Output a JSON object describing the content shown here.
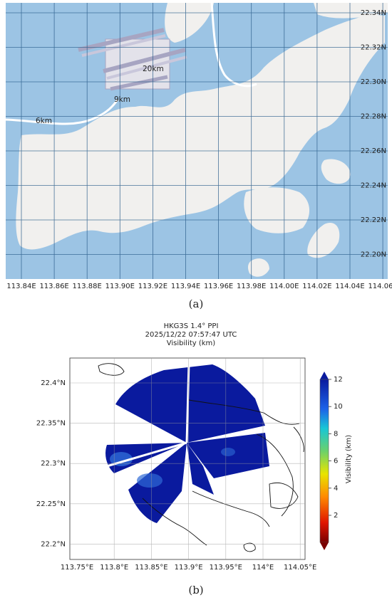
{
  "map_a": {
    "lon_labels": [
      "113.84E",
      "113.86E",
      "113.88E",
      "113.90E",
      "113.92E",
      "113.94E",
      "113.96E",
      "113.98E",
      "114.00E",
      "114.02E",
      "114.04E",
      "114.06E"
    ],
    "lat_labels": [
      "22.34N",
      "22.32N",
      "22.30N",
      "22.28N",
      "22.26N",
      "22.24N",
      "22.22N",
      "22.20N"
    ],
    "range_labels": [
      "20km",
      "9km",
      "6km"
    ],
    "colors": {
      "water": "#9cc4e4",
      "land": "#f1f0ee",
      "grid": "#2d5f8c"
    },
    "caption": "(a)"
  },
  "map_b": {
    "title_line1": "HKG3S 1.4° PPI",
    "title_line2": "2025/12/22 07:57:47 UTC",
    "title_line3": "Visibility (km)",
    "lon_labels": [
      "113.75°E",
      "113.8°E",
      "113.85°E",
      "113.9°E",
      "113.95°E",
      "114°E",
      "114.05°E"
    ],
    "lat_labels": [
      "22.4°N",
      "22.35°N",
      "22.3°N",
      "22.25°N",
      "22.2°N"
    ],
    "colorbar": {
      "label": "Visibility (km)",
      "ticks": [
        "12",
        "10",
        "8",
        "6",
        "4",
        "2"
      ]
    },
    "colors": {
      "echo": "#0a1a9e",
      "echo_light": "#2d6ad6"
    },
    "caption": "(b)"
  }
}
